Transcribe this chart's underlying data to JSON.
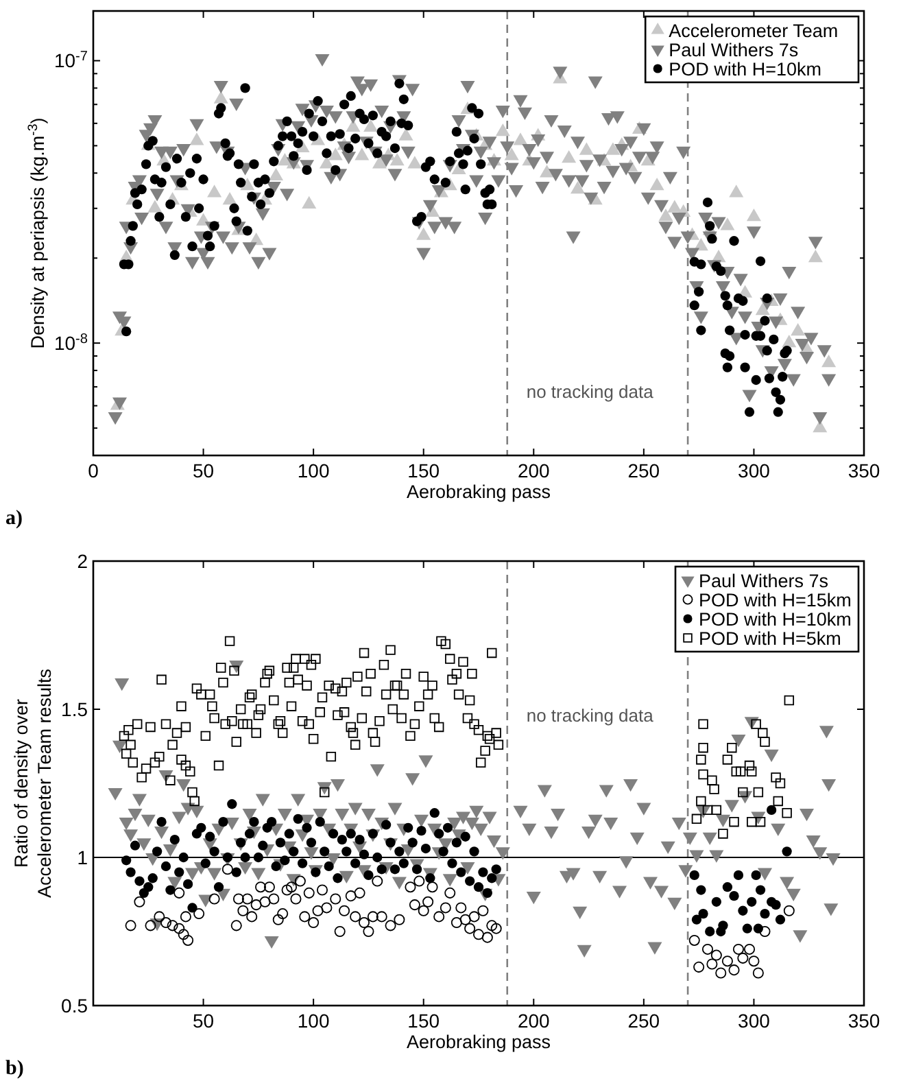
{
  "chart_data": [
    {
      "type": "scatter",
      "xlabel": "Aerobraking pass",
      "ylabel": "Density at periapsis (kg.m$^{-3}$)",
      "log": "y",
      "xlim": [
        0,
        350
      ],
      "xticks": [
        0,
        50,
        100,
        150,
        200,
        250,
        300,
        350
      ],
      "ylim": [
        4e-09,
        1.5e-07
      ],
      "yticks": [
        {
          "value": 5e-09,
          "label": null
        },
        {
          "value": 6e-09,
          "label": null
        },
        {
          "value": 7e-09,
          "label": null
        },
        {
          "value": 8e-09,
          "label": null
        },
        {
          "value": 9e-09,
          "label": null
        },
        {
          "value": 1e-08,
          "label": "10$^{-8}$"
        },
        {
          "value": 2e-08,
          "label": null
        },
        {
          "value": 3e-08,
          "label": null
        },
        {
          "value": 4e-08,
          "label": null
        },
        {
          "value": 5e-08,
          "label": null
        },
        {
          "value": 6e-08,
          "label": null
        },
        {
          "value": 7e-08,
          "label": null
        },
        {
          "value": 8e-08,
          "label": null
        },
        {
          "value": 9e-08,
          "label": null
        },
        {
          "value": 1e-07,
          "label": "10$^{-7}$"
        }
      ],
      "legend": "top right",
      "annotations": [
        "a)"
      ],
      "ref_lines": [
        {
          "axis": "x",
          "value": 188,
          "color": "#808080",
          "line_style": "dashed",
          "label": "no tracking data"
        },
        {
          "axis": "x",
          "value": 270,
          "color": "#808080",
          "line_style": "dashed"
        }
      ],
      "series": [
        {
          "name": "Accelerometer Team",
          "color": "#c8c8c8",
          "marker": "triangle",
          "x": [
            11,
            13,
            15,
            18,
            25,
            28,
            32,
            36,
            40,
            44,
            47,
            50,
            55,
            58,
            62,
            66,
            70,
            74,
            78,
            83,
            87,
            91,
            95,
            98,
            102,
            106,
            110,
            114,
            118,
            122,
            126,
            130,
            134,
            138,
            142,
            146,
            150,
            154,
            158,
            162,
            166,
            170,
            174,
            178,
            182,
            186,
            190,
            194,
            198,
            202,
            206,
            212,
            216,
            220,
            224,
            228,
            232,
            236,
            240,
            244,
            248,
            252,
            256,
            260,
            264,
            268,
            272,
            276,
            280,
            284,
            288,
            292,
            296,
            300,
            304,
            308,
            312,
            316,
            320,
            324,
            328,
            330,
            334
          ],
          "values": [
            6e-09,
            1.1e-08,
            2e-08,
            3.2e-08,
            5e-08,
            3e-08,
            4.4e-08,
            3.2e-08,
            3.6e-08,
            2.9e-08,
            5.2e-08,
            2.7e-08,
            3.4e-08,
            7.3e-08,
            3.2e-08,
            2.5e-08,
            3.6e-08,
            2.3e-08,
            3.2e-08,
            3.9e-08,
            4.4e-08,
            4.3e-08,
            4.9e-08,
            3.1e-08,
            5.2e-08,
            4.3e-08,
            4.6e-08,
            5e-08,
            5.8e-08,
            4.6e-08,
            5.8e-08,
            4.3e-08,
            4.6e-08,
            4.4e-08,
            5.4e-08,
            4.3e-08,
            2.4e-08,
            2.9e-08,
            3.4e-08,
            3.6e-08,
            4.1e-08,
            6.7e-08,
            5.4e-08,
            5e-08,
            4.4e-08,
            5.6e-08,
            4.6e-08,
            5.2e-08,
            4.4e-08,
            5.4e-08,
            4e-08,
            8.6e-08,
            4.5e-08,
            3.5e-08,
            4.8e-08,
            3.2e-08,
            4.4e-08,
            4.8e-08,
            5e-08,
            4.2e-08,
            5.7e-08,
            4.4e-08,
            3.6e-08,
            2.8e-08,
            3e-08,
            2.9e-08,
            2.4e-08,
            2.2e-08,
            2.5e-08,
            2e-08,
            2.6e-08,
            3.4e-08,
            1.5e-08,
            2.8e-08,
            1.3e-08,
            1.4e-08,
            1.2e-08,
            1e-08,
            1.1e-08,
            9.5e-09,
            2e-08,
            5e-09,
            8.5e-09
          ]
        },
        {
          "name": "Paul Withers 7s",
          "color": "#808080",
          "marker": "triangle-down",
          "x": [
            10,
            12,
            12,
            14,
            15,
            17,
            19,
            21,
            22,
            24,
            26,
            28,
            29,
            31,
            33,
            35,
            37,
            38,
            41,
            43,
            45,
            47,
            49,
            50,
            52,
            54,
            56,
            58,
            59,
            61,
            63,
            65,
            66,
            69,
            71,
            73,
            75,
            77,
            80,
            82,
            84,
            86,
            88,
            91,
            93,
            95,
            97,
            99,
            101,
            104,
            106,
            108,
            110,
            112,
            114,
            116,
            118,
            120,
            122,
            124,
            126,
            128,
            131,
            133,
            135,
            137,
            139,
            141,
            143,
            145,
            148,
            150,
            153,
            155,
            157,
            160,
            162,
            164,
            166,
            168,
            170,
            172,
            174,
            176,
            178,
            180,
            182,
            184,
            186,
            188,
            190,
            192,
            194,
            196,
            198,
            200,
            202,
            204,
            206,
            208,
            210,
            212,
            214,
            216,
            218,
            220,
            222,
            224,
            226,
            228,
            230,
            232,
            234,
            236,
            238,
            240,
            242,
            244,
            246,
            248,
            250,
            252,
            254,
            256,
            258,
            260,
            262,
            264,
            266,
            268,
            270,
            272,
            274,
            276,
            278,
            280,
            282,
            284,
            286,
            288,
            290,
            292,
            294,
            296,
            298,
            300,
            302,
            304,
            306,
            308,
            310,
            312,
            314,
            316,
            318,
            320,
            322,
            324,
            326,
            328,
            330,
            332,
            334
          ],
          "values": [
            5.5e-09,
            6.2e-09,
            1.25e-08,
            1.2e-08,
            2.6e-08,
            2.2e-08,
            3.6e-08,
            3.8e-08,
            2.8e-08,
            5.5e-08,
            5.8e-08,
            6.2e-08,
            3.4e-08,
            4.8e-08,
            2.6e-08,
            4.8e-08,
            2.2e-08,
            3.8e-08,
            4.9e-08,
            3e-08,
            1.95e-08,
            6e-08,
            2.4e-08,
            2.1e-08,
            1.95e-08,
            2.6e-08,
            5e-08,
            8.2e-08,
            2.4e-08,
            4.8e-08,
            2.2e-08,
            7.1e-08,
            2.6e-08,
            4.2e-08,
            2.2e-08,
            3.3e-08,
            1.95e-08,
            2.9e-08,
            2.1e-08,
            3.6e-08,
            4.9e-08,
            6e-08,
            3.4e-08,
            4.4e-08,
            5.9e-08,
            6.8e-08,
            4.3e-08,
            6.2e-08,
            7e-08,
            1.02e-07,
            6.7e-08,
            3.9e-08,
            6.4e-08,
            4e-08,
            5e-08,
            4.6e-08,
            6.4e-08,
            8.5e-08,
            8e-08,
            5.2e-08,
            8.3e-08,
            4.8e-08,
            6.7e-08,
            4.5e-08,
            5.9e-08,
            4e-08,
            8.6e-08,
            6.4e-08,
            4.8e-08,
            8e-08,
            2.7e-08,
            2.1e-08,
            3.1e-08,
            2.6e-08,
            3.5e-08,
            2.7e-08,
            4.3e-08,
            2.6e-08,
            6.2e-08,
            4.9e-08,
            8.2e-08,
            5.5e-08,
            3.8e-08,
            4.8e-08,
            2.8e-08,
            5.2e-08,
            4.4e-08,
            3.8e-08,
            6.7e-08,
            5e-08,
            4.2e-08,
            3.5e-08,
            7.3e-08,
            6.6e-08,
            4.9e-08,
            4.4e-08,
            5.3e-08,
            3.6e-08,
            4.6e-08,
            6.2e-08,
            4e-08,
            9.2e-08,
            5.7e-08,
            3.8e-08,
            2.4e-08,
            5.2e-08,
            3.8e-08,
            4.3e-08,
            3.3e-08,
            8.5e-08,
            4.5e-08,
            3.6e-08,
            6.3e-08,
            4.1e-08,
            6.4e-08,
            4.9e-08,
            4.2e-08,
            5.2e-08,
            3.9e-08,
            4.6e-08,
            5.8e-08,
            3.3e-08,
            4.6e-08,
            5e-08,
            3.1e-08,
            2.6e-08,
            3.9e-08,
            2.3e-08,
            2.8e-08,
            4.8e-08,
            2.4e-08,
            2.1e-08,
            1.6e-08,
            1.25e-08,
            2.8e-08,
            2.4e-08,
            1.9e-08,
            2.7e-08,
            1.6e-08,
            1.8e-08,
            1.3e-08,
            1.05e-08,
            1.7e-08,
            1.25e-08,
            6.6e-09,
            2.5e-08,
            1.15e-08,
            9.5e-09,
            1.4e-08,
            8e-09,
            1.2e-08,
            1.45e-08,
            8.5e-09,
            1.8e-08,
            7.5e-09,
            1.3e-08,
            1e-08,
            9e-09,
            1.05e-08,
            2.3e-08,
            5.5e-09,
            9.5e-09,
            7.5e-09
          ]
        },
        {
          "name": "POD with H=10km",
          "color": "#000000",
          "marker": "circle",
          "x": [
            15,
            14,
            16,
            17,
            18,
            19,
            20,
            22,
            24,
            25,
            27,
            28,
            30,
            31,
            33,
            35,
            37,
            38,
            40,
            42,
            44,
            45,
            47,
            48,
            50,
            52,
            53,
            55,
            57,
            58,
            60,
            61,
            62,
            64,
            65,
            66,
            67,
            69,
            70,
            72,
            73,
            75,
            76,
            78,
            80,
            82,
            84,
            86,
            88,
            90,
            91,
            93,
            95,
            97,
            98,
            100,
            102,
            104,
            106,
            108,
            110,
            112,
            114,
            116,
            117,
            119,
            121,
            123,
            125,
            127,
            129,
            131,
            133,
            135,
            137,
            139,
            140,
            141,
            143,
            147,
            149,
            151,
            153,
            155,
            160,
            162,
            165,
            166,
            168,
            169,
            170,
            172,
            173,
            175,
            176,
            178,
            179,
            180,
            181,
            279,
            280,
            281,
            291,
            273,
            276,
            283,
            285,
            275,
            273,
            276,
            287,
            288,
            293,
            295,
            303,
            306,
            289,
            296,
            301,
            303,
            305,
            289,
            287,
            288,
            296,
            301,
            306,
            309,
            315,
            314,
            307,
            313,
            310,
            312,
            298,
            311
          ],
          "values": [
            1.1e-08,
            1.9e-08,
            1.9e-08,
            2.3e-08,
            2.6e-08,
            3.4e-08,
            3.1e-08,
            3.5e-08,
            4.3e-08,
            5e-08,
            5.2e-08,
            3.8e-08,
            2.8e-08,
            3.7e-08,
            4.2e-08,
            3.1e-08,
            2.05e-08,
            4.5e-08,
            3.7e-08,
            2.8e-08,
            4e-08,
            2.2e-08,
            4.5e-08,
            3e-08,
            3.8e-08,
            2.4e-08,
            2.2e-08,
            2.6e-08,
            6.5e-08,
            6.8e-08,
            5.1e-08,
            4.6e-08,
            4.7e-08,
            3e-08,
            2.7e-08,
            4.3e-08,
            3.7e-08,
            8e-08,
            2.5e-08,
            3.3e-08,
            4.3e-08,
            3.7e-08,
            3.1e-08,
            3.8e-08,
            3.4e-08,
            4.4e-08,
            5e-08,
            5.4e-08,
            6.1e-08,
            5.4e-08,
            4.6e-08,
            5.1e-08,
            5.6e-08,
            4.1e-08,
            6.5e-08,
            5.4e-08,
            7.2e-08,
            6.1e-08,
            4.7e-08,
            5.4e-08,
            4.1e-08,
            5.5e-08,
            7e-08,
            4.9e-08,
            7.5e-08,
            5.3e-08,
            6.5e-08,
            6.2e-08,
            5.1e-08,
            6.4e-08,
            4.7e-08,
            5.6e-08,
            5.4e-08,
            6.1e-08,
            4.9e-08,
            8.3e-08,
            6e-08,
            7.3e-08,
            5.9e-08,
            2.7e-08,
            2.8e-08,
            4.2e-08,
            4.4e-08,
            3.8e-08,
            3.7e-08,
            4.4e-08,
            5.6e-08,
            4.7e-08,
            4.3e-08,
            3.5e-08,
            4.8e-08,
            6.8e-08,
            5.3e-08,
            6.5e-08,
            4.3e-08,
            3.4e-08,
            3.1e-08,
            3.5e-08,
            3.1e-08,
            3.15e-08,
            2.6e-08,
            2.34e-08,
            2.3e-08,
            1.94e-08,
            1.9e-08,
            1.87e-08,
            1.8e-08,
            1.52e-08,
            1.36e-08,
            1.11e-08,
            1.47e-08,
            1.36e-08,
            1.44e-08,
            1.41e-08,
            1.95e-08,
            1.44e-08,
            1.11e-08,
            1.07e-08,
            1.06e-08,
            1.06e-08,
            1.2e-08,
            9e-09,
            9.2e-09,
            8.2e-09,
            8.2e-09,
            7.4e-09,
            9.4e-09,
            1.03e-08,
            9.4e-09,
            9.2e-09,
            7.5e-09,
            7.6e-09,
            6.7e-09,
            6.3e-09,
            5.7e-09,
            5.7e-09
          ]
        }
      ]
    },
    {
      "type": "scatter",
      "xlabel": "Aerobraking pass",
      "ylabel": "Ratio of density over\nAccelerometer Team results",
      "xlim": [
        0,
        350
      ],
      "xticks": [
        50,
        100,
        150,
        200,
        250,
        300,
        350
      ],
      "ylim": [
        0.5,
        2
      ],
      "yticks": [
        0.5,
        1,
        1.5,
        2
      ],
      "legend": "top right",
      "annotations": [
        "b)"
      ],
      "ref_lines": [
        {
          "axis": "x",
          "value": 188,
          "color": "#808080",
          "line_style": "dashed",
          "label": "no tracking data"
        },
        {
          "axis": "x",
          "value": 270,
          "color": "#808080",
          "line_style": "dashed"
        },
        {
          "axis": "y",
          "value": 1,
          "color": "#000000",
          "line_style": "solid"
        }
      ],
      "series": [
        {
          "name": "Paul Withers 7s",
          "color": "#808080",
          "marker": "triangle-down",
          "x": [
            10,
            12,
            13,
            15,
            17,
            19,
            21,
            23,
            25,
            27,
            29,
            31,
            33,
            35,
            37,
            39,
            41,
            43,
            45,
            47,
            49,
            51,
            53,
            55,
            57,
            59,
            61,
            63,
            65,
            67,
            69,
            71,
            73,
            75,
            77,
            79,
            81,
            83,
            85,
            87,
            89,
            91,
            93,
            95,
            97,
            99,
            101,
            103,
            105,
            107,
            109,
            111,
            113,
            115,
            117,
            119,
            121,
            123,
            125,
            127,
            129,
            131,
            133,
            135,
            137,
            139,
            141,
            143,
            145,
            147,
            149,
            151,
            153,
            155,
            157,
            160,
            162,
            164,
            166,
            168,
            170,
            172,
            174,
            176,
            178,
            180,
            182,
            184,
            186,
            194,
            198,
            200,
            205,
            208,
            211,
            215,
            218,
            221,
            223,
            225,
            228,
            230,
            233,
            235,
            239,
            242,
            244,
            247,
            250,
            253,
            255,
            258,
            261,
            264,
            266,
            269,
            271,
            274,
            277,
            280,
            283,
            286,
            290,
            293,
            296,
            299,
            302,
            305,
            308,
            311,
            315,
            318,
            321,
            324,
            327,
            330,
            333,
            334,
            335,
            336
          ],
          "values": [
            1.22,
            1.38,
            1.59,
            1.12,
            1.08,
            1.15,
            1.2,
            1.05,
            1.13,
            1.0,
            0.78,
            1.09,
            1.28,
            1.03,
            0.92,
            1.14,
            1.25,
            1.17,
            0.95,
            1.16,
            0.97,
            0.86,
            1.05,
            0.95,
            1.1,
            0.88,
            1.0,
            1.12,
            1.65,
            1.05,
            0.97,
            1.15,
            1.09,
            0.95,
            1.2,
            1.03,
            0.72,
            1.1,
            0.98,
            1.15,
            1.04,
            0.93,
            1.2,
            1.08,
            1.13,
            1.02,
            0.96,
            1.15,
            1.24,
            1.1,
            1.0,
            1.25,
            1.15,
            0.94,
            1.1,
            1.17,
            1.04,
            0.96,
            1.15,
            1.08,
            1.3,
            1.12,
            0.97,
            1.05,
            1.17,
            0.92,
            1.1,
            1.03,
            1.27,
            0.98,
            1.13,
            1.33,
            0.95,
            1.1,
            1.02,
            1.05,
            0.93,
            1.12,
            1.08,
            1.14,
            0.97,
            1.12,
            1.16,
            1.1,
            0.88,
            1.14,
            1.06,
            0.93,
            1.02,
            1.16,
            1.1,
            0.87,
            1.23,
            1.09,
            1.15,
            0.94,
            0.95,
            0.82,
            0.69,
            1.09,
            1.13,
            0.94,
            1.23,
            1.12,
            0.89,
            0.99,
            1.25,
            1.07,
            1.17,
            0.92,
            0.7,
            0.89,
            1.04,
            0.85,
            1.12,
            0.96,
            1.07,
            1.01,
            1.16,
            1.07,
            1.01,
            1.13,
            1.18,
            1.4,
            1.21,
            1.46,
            1.14,
            0.95,
            1.35,
            1.1,
            0.92,
            0.88,
            0.74,
            1.15,
            1.06,
            1.02,
            1.43,
            1.25,
            0.83,
            1.0
          ]
        },
        {
          "name": "POD with H=15km",
          "color": "#000000",
          "marker": "circle-open",
          "x": [
            17,
            21,
            26,
            30,
            33,
            36,
            39,
            41,
            43,
            42,
            39,
            48,
            55,
            61,
            65,
            66,
            68,
            70,
            72,
            74,
            76,
            78,
            80,
            82,
            84,
            86,
            88,
            90,
            92,
            94,
            96,
            98,
            100,
            102,
            104,
            106,
            110,
            112,
            114,
            117,
            119,
            121,
            123,
            125,
            127,
            129,
            131,
            135,
            139,
            144,
            146,
            148,
            150,
            152,
            154,
            157,
            160,
            162,
            165,
            167,
            169,
            171,
            173,
            175,
            177,
            179,
            181,
            183,
            273,
            275,
            279,
            281,
            283,
            285,
            288,
            291,
            293,
            295,
            298,
            300,
            302,
            305,
            316
          ],
          "values": [
            0.77,
            0.85,
            0.77,
            0.8,
            0.78,
            0.77,
            0.76,
            0.74,
            0.72,
            0.8,
            0.88,
            0.81,
            0.86,
            0.96,
            0.77,
            0.86,
            0.82,
            0.86,
            0.8,
            0.84,
            0.9,
            0.85,
            0.9,
            0.86,
            0.79,
            0.81,
            0.89,
            0.9,
            0.86,
            0.92,
            0.8,
            0.88,
            0.78,
            0.82,
            0.89,
            0.83,
            0.86,
            0.75,
            0.82,
            0.87,
            0.8,
            0.88,
            0.78,
            0.75,
            0.8,
            0.92,
            0.8,
            0.77,
            0.79,
            0.9,
            0.84,
            0.92,
            0.82,
            0.85,
            0.9,
            0.8,
            0.83,
            0.88,
            0.78,
            0.83,
            0.79,
            0.76,
            0.8,
            0.74,
            0.82,
            0.73,
            0.77,
            0.76,
            0.72,
            0.63,
            0.69,
            0.64,
            0.67,
            0.61,
            0.65,
            0.62,
            0.69,
            0.66,
            0.69,
            0.65,
            0.61,
            0.75,
            0.82
          ]
        },
        {
          "name": "POD with H=10km",
          "color": "#000000",
          "marker": "circle",
          "x": [
            15,
            17,
            19,
            21,
            23,
            25,
            27,
            29,
            31,
            33,
            35,
            37,
            39,
            41,
            43,
            45,
            47,
            49,
            51,
            53,
            55,
            57,
            59,
            61,
            63,
            65,
            67,
            69,
            71,
            73,
            75,
            77,
            79,
            81,
            83,
            85,
            87,
            89,
            91,
            93,
            95,
            97,
            99,
            101,
            103,
            105,
            107,
            109,
            111,
            113,
            115,
            117,
            119,
            121,
            123,
            125,
            127,
            129,
            131,
            133,
            135,
            137,
            139,
            141,
            143,
            145,
            147,
            149,
            151,
            153,
            155,
            157,
            159,
            161,
            163,
            165,
            167,
            169,
            171,
            173,
            175,
            177,
            179,
            181,
            183,
            273,
            276,
            274,
            277,
            280,
            283,
            286,
            288,
            291,
            293,
            295,
            297,
            299,
            301,
            303,
            305,
            308,
            310,
            312,
            308,
            315,
            285,
            302
          ],
          "values": [
            0.99,
            0.95,
            1.04,
            0.92,
            0.88,
            0.9,
            0.93,
            1.02,
            1.12,
            0.97,
            0.89,
            1.06,
            0.95,
            1.0,
            0.91,
            0.83,
            1.08,
            1.1,
            0.98,
            1.07,
            1.02,
            0.9,
            1.12,
            1.0,
            1.18,
            0.95,
            1.05,
            1.0,
            1.08,
            1.12,
            1.0,
            1.04,
            1.1,
            1.12,
            0.97,
            1.05,
            0.99,
            1.08,
            1.02,
            1.13,
            0.98,
            1.1,
            1.05,
            0.95,
            1.12,
            1.02,
            0.97,
            1.08,
            0.93,
            1.06,
            1.02,
            1.08,
            0.98,
            1.06,
            1.01,
            0.94,
            1.08,
            1.0,
            0.96,
            1.11,
            1.05,
            0.96,
            1.02,
            0.98,
            1.1,
            1.05,
            0.96,
            1.09,
            1.03,
            0.93,
            1.15,
            1.08,
            1.02,
            1.1,
            0.98,
            1.05,
            0.95,
            1.07,
            0.92,
            1.02,
            0.9,
            0.95,
            0.88,
            0.93,
            0.96,
            0.94,
            0.89,
            0.79,
            0.81,
            0.75,
            0.85,
            0.77,
            0.9,
            0.87,
            0.94,
            0.82,
            0.76,
            0.85,
            0.94,
            0.89,
            0.81,
            0.85,
            0.84,
            0.79,
            1.16,
            1.02,
            0.75,
            0.76
          ]
        },
        {
          "name": "POD with H=5km",
          "color": "#000000",
          "marker": "square-open",
          "x": [
            14,
            15,
            16,
            17,
            18,
            20,
            22,
            24,
            26,
            28,
            30,
            31,
            33,
            35,
            36,
            38,
            40,
            40,
            42,
            42,
            44,
            45,
            46,
            47,
            49,
            51,
            53,
            54,
            55,
            57,
            58,
            59,
            60,
            62,
            63,
            64,
            65,
            67,
            68,
            70,
            71,
            72,
            74,
            75,
            76,
            78,
            79,
            80,
            82,
            84,
            85,
            86,
            88,
            89,
            90,
            91,
            92,
            93,
            95,
            96,
            97,
            98,
            99,
            100,
            101,
            103,
            104,
            105,
            107,
            108,
            110,
            111,
            113,
            114,
            115,
            117,
            118,
            119,
            120,
            122,
            123,
            124,
            126,
            127,
            128,
            130,
            132,
            133,
            135,
            136,
            137,
            138,
            140,
            141,
            142,
            144,
            146,
            148,
            150,
            152,
            154,
            155,
            157,
            158,
            160,
            162,
            163,
            165,
            166,
            168,
            170,
            171,
            172,
            173,
            175,
            176,
            178,
            179,
            180,
            181,
            183,
            184,
            277,
            277,
            276,
            277,
            281,
            282,
            279,
            283,
            274,
            276,
            288,
            290,
            292,
            294,
            295,
            298,
            299,
            301,
            302,
            303,
            304,
            305,
            286,
            291,
            310,
            312,
            311,
            315,
            316,
            299
          ],
          "values": [
            1.41,
            1.35,
            1.43,
            1.38,
            1.32,
            1.45,
            1.27,
            1.3,
            1.44,
            1.32,
            1.34,
            1.6,
            1.45,
            1.26,
            1.38,
            1.42,
            1.33,
            1.51,
            1.44,
            1.31,
            1.29,
            1.22,
            1.19,
            1.57,
            1.55,
            1.41,
            1.55,
            1.51,
            1.47,
            1.31,
            1.64,
            1.59,
            1.45,
            1.73,
            1.46,
            1.63,
            1.39,
            1.5,
            1.45,
            1.45,
            1.54,
            1.55,
            1.42,
            1.48,
            1.5,
            1.59,
            1.62,
            1.63,
            1.53,
            1.45,
            1.46,
            1.42,
            1.64,
            1.59,
            1.51,
            1.64,
            1.67,
            1.6,
            1.46,
            1.67,
            1.58,
            1.45,
            1.65,
            1.4,
            1.67,
            1.49,
            1.54,
            1.22,
            1.58,
            1.34,
            1.57,
            1.48,
            1.56,
            1.49,
            1.59,
            1.44,
            1.42,
            1.38,
            1.61,
            1.47,
            1.69,
            1.56,
            1.62,
            1.42,
            1.39,
            1.46,
            1.65,
            1.55,
            1.7,
            1.5,
            1.58,
            1.58,
            1.47,
            1.55,
            1.62,
            1.41,
            1.45,
            1.51,
            1.61,
            1.55,
            1.58,
            1.47,
            1.44,
            1.73,
            1.72,
            1.67,
            1.6,
            1.62,
            1.55,
            1.66,
            1.47,
            1.53,
            1.62,
            1.45,
            1.43,
            1.32,
            1.36,
            1.41,
            1.4,
            1.69,
            1.42,
            1.38,
            1.45,
            1.37,
            1.33,
            1.28,
            1.26,
            1.23,
            1.16,
            1.16,
            1.13,
            1.19,
            1.33,
            1.37,
            1.29,
            1.29,
            1.22,
            1.31,
            1.29,
            1.45,
            1.22,
            1.12,
            1.42,
            1.39,
            1.08,
            1.12,
            1.27,
            1.25,
            1.19,
            1.15,
            1.53,
            1.12
          ]
        }
      ]
    }
  ]
}
